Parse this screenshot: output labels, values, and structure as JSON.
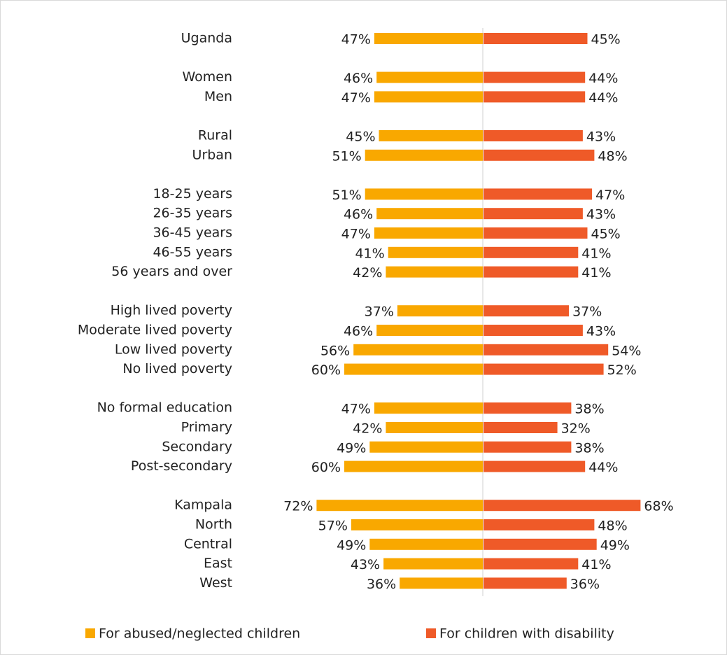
{
  "chart_data": {
    "type": "butterfly",
    "categories": [
      "Uganda",
      null,
      "Women",
      "Men",
      null,
      "Rural",
      "Urban",
      null,
      "18-25 years",
      "26-35 years",
      "36-45 years",
      "46-55 years",
      "56 years and over",
      null,
      "High lived poverty",
      "Moderate lived poverty",
      "Low lived poverty",
      "No lived poverty",
      null,
      "No formal education",
      "Primary",
      "Secondary",
      "Post-secondary",
      null,
      "Kampala",
      "North",
      "Central",
      "East",
      "West"
    ],
    "series": [
      {
        "name": "For abused/neglected children",
        "color": "#f9a800",
        "values": [
          47,
          null,
          46,
          47,
          null,
          45,
          51,
          null,
          51,
          46,
          47,
          41,
          42,
          null,
          37,
          46,
          56,
          60,
          null,
          47,
          42,
          49,
          60,
          null,
          72,
          57,
          49,
          43,
          36
        ],
        "value_labels": [
          "47%",
          null,
          "46%",
          "47%",
          null,
          "45%",
          "51%",
          null,
          "51%",
          "46%",
          "47%",
          "41%",
          "42%",
          null,
          "37%",
          "46%",
          "56%",
          "60%",
          null,
          "47%",
          "42%",
          "49%",
          "60%",
          null,
          "72%",
          "57%",
          "49%",
          "43%",
          "36%"
        ]
      },
      {
        "name": "For children with disability",
        "color": "#ef5a28",
        "values": [
          45,
          null,
          44,
          44,
          null,
          43,
          48,
          null,
          47,
          43,
          45,
          41,
          41,
          null,
          37,
          43,
          54,
          52,
          null,
          38,
          32,
          38,
          44,
          null,
          68,
          48,
          49,
          41,
          36
        ],
        "value_labels": [
          "45%",
          null,
          "44%",
          "44%",
          null,
          "43%",
          "48%",
          null,
          "47%",
          "43%",
          "45%",
          "41%",
          "41%",
          null,
          "37%",
          "43%",
          "54%",
          "52%",
          null,
          "38%",
          "32%",
          "38%",
          "44%",
          null,
          "68%",
          "48%",
          "49%",
          "41%",
          "36%"
        ]
      }
    ],
    "legend": "bottom"
  }
}
